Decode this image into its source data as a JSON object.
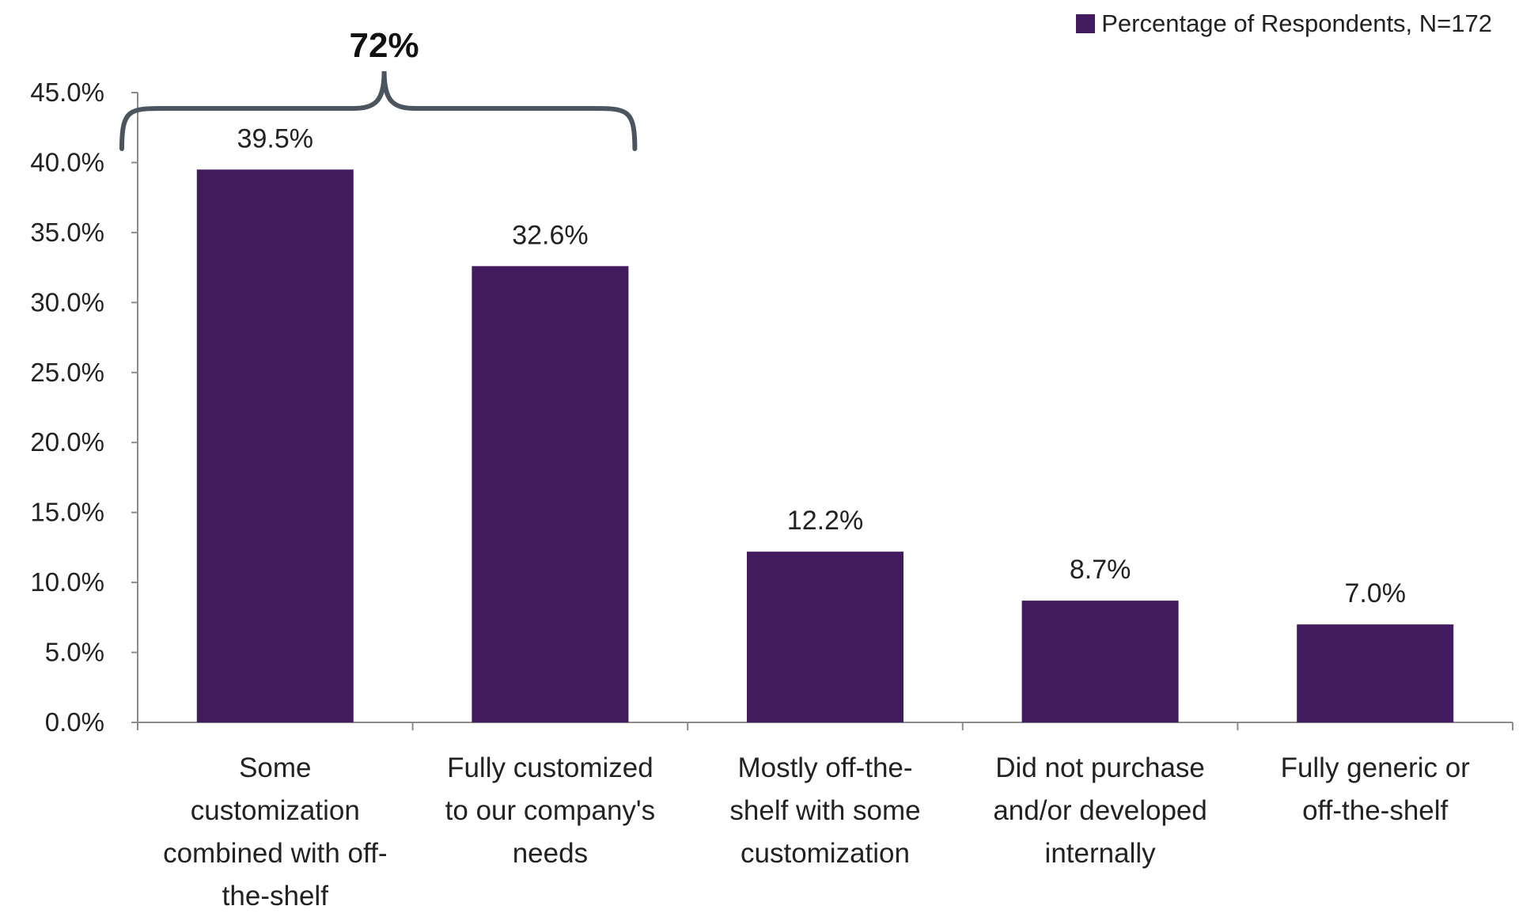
{
  "chart_data": {
    "type": "bar",
    "categories": [
      [
        "Some",
        "customization",
        "combined with off-",
        "the-shelf"
      ],
      [
        "Fully customized",
        "to our company's",
        "needs"
      ],
      [
        "Mostly off-the-",
        "shelf with some",
        "customization"
      ],
      [
        "Did not purchase",
        "and/or developed",
        "internally"
      ],
      [
        "Fully generic or",
        "off-the-shelf"
      ]
    ],
    "series": [
      {
        "name": "Percentage of Respondents, N=172",
        "values": [
          39.5,
          32.6,
          12.2,
          8.7,
          7.0
        ]
      }
    ],
    "data_labels": [
      "39.5%",
      "32.6%",
      "12.2%",
      "8.7%",
      "7.0%"
    ],
    "y_ticks": [
      "0.0%",
      "5.0%",
      "10.0%",
      "15.0%",
      "20.0%",
      "25.0%",
      "30.0%",
      "35.0%",
      "40.0%",
      "45.0%"
    ],
    "ylim": [
      0,
      45
    ],
    "bar_color": "#421a5e",
    "legend_position": "top-right",
    "annotation": {
      "text": "72%",
      "spans_categories": [
        0,
        1
      ]
    },
    "grid": false,
    "title": "",
    "xlabel": "",
    "ylabel": ""
  }
}
